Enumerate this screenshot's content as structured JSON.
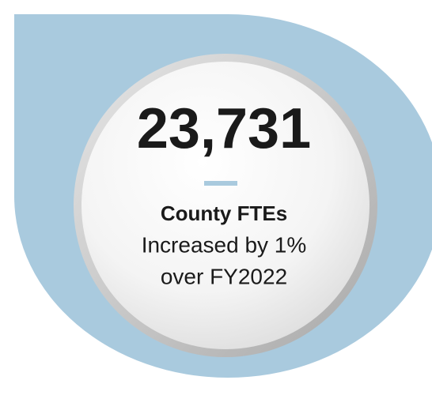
{
  "figure": {
    "value": "23,731",
    "label": "County FTEs",
    "description": [
      "Increased by 1%",
      "over FY2022"
    ]
  }
}
